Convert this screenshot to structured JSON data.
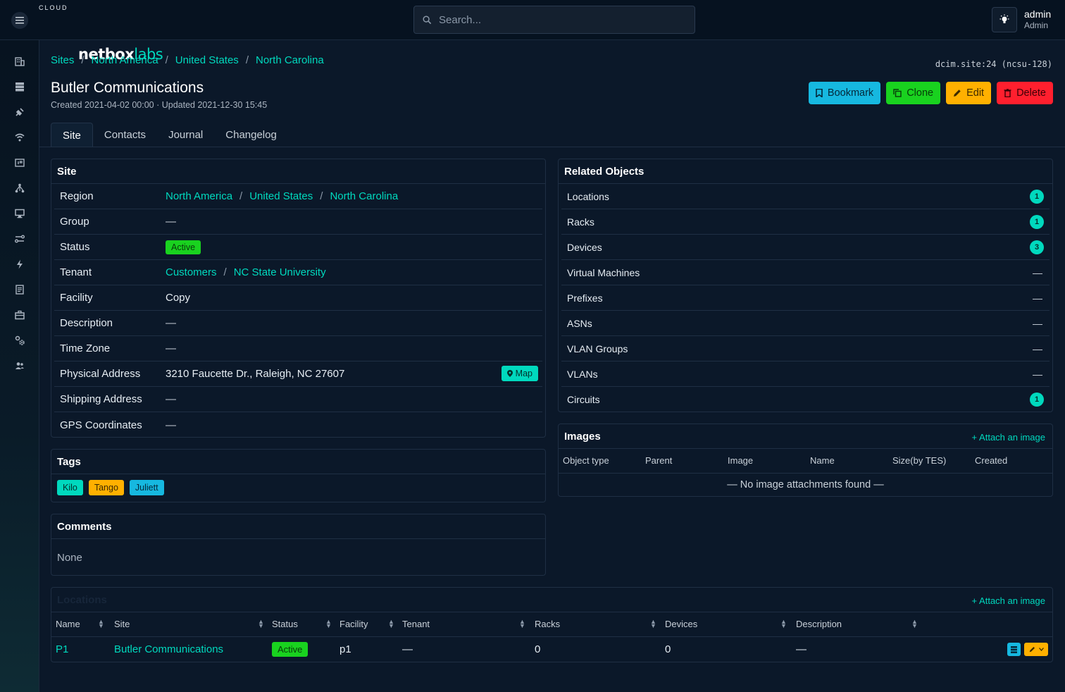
{
  "header": {
    "logo_main": "netbox",
    "logo_accent": "labs",
    "logo_sub": "CLOUD",
    "search_placeholder": "Search...",
    "user_name": "admin",
    "user_role": "Admin"
  },
  "sidebar": {
    "icons": [
      "building-icon",
      "server-icon",
      "plug-icon",
      "wifi-icon",
      "ip-icon",
      "network-icon",
      "monitor-icon",
      "circuit-icon",
      "power-icon",
      "document-icon",
      "briefcase-icon",
      "settings-icon",
      "users-icon"
    ]
  },
  "breadcrumb": [
    "Sites",
    "North America",
    "United States",
    "North Carolina"
  ],
  "object_id": "dcim.site:24 (ncsu-128)",
  "page": {
    "title": "Butler Communications",
    "meta": "Created 2021-04-02 00:00 · Updated 2021-12-30 15:45"
  },
  "actions": {
    "bookmark": "Bookmark",
    "clone": "Clone",
    "edit": "Edit",
    "delete": "Delete"
  },
  "tabs": [
    "Site",
    "Contacts",
    "Journal",
    "Changelog"
  ],
  "site_card": {
    "title": "Site",
    "region_label": "Region",
    "region": [
      "North America",
      "United States",
      "North Carolina"
    ],
    "group_label": "Group",
    "group": "—",
    "status_label": "Status",
    "status": "Active",
    "tenant_label": "Tenant",
    "tenant": [
      "Customers",
      "NC State University"
    ],
    "facility_label": "Facility",
    "facility": "Copy",
    "description_label": "Description",
    "description": "—",
    "timezone_label": "Time Zone",
    "timezone": "—",
    "physical_label": "Physical Address",
    "physical": "3210 Faucette Dr., Raleigh, NC 27607",
    "map_label": "Map",
    "shipping_label": "Shipping Address",
    "shipping": "—",
    "gps_label": "GPS Coordinates",
    "gps": "—"
  },
  "tags_card": {
    "title": "Tags",
    "tags": [
      {
        "label": "Kilo",
        "color": "#00d9be"
      },
      {
        "label": "Tango",
        "color": "#ffb000"
      },
      {
        "label": "Juliett",
        "color": "#16b8e0"
      }
    ]
  },
  "comments_card": {
    "title": "Comments",
    "text": "None"
  },
  "related": {
    "title": "Related Objects",
    "items": [
      {
        "label": "Locations",
        "count": "1"
      },
      {
        "label": "Racks",
        "count": "1"
      },
      {
        "label": "Devices",
        "count": "3"
      },
      {
        "label": "Virtual Machines",
        "count": "—"
      },
      {
        "label": "Prefixes",
        "count": "—"
      },
      {
        "label": "ASNs",
        "count": "—"
      },
      {
        "label": "VLAN Groups",
        "count": "—"
      },
      {
        "label": "VLANs",
        "count": "—"
      },
      {
        "label": "Circuits",
        "count": "1"
      }
    ]
  },
  "images": {
    "title": "Images",
    "attach": "Attach an image",
    "columns": [
      "Object type",
      "Parent",
      "Image",
      "Name",
      "Size(by TES)",
      "Created"
    ],
    "empty": "— No image attachments found —"
  },
  "locations": {
    "title": "Locations",
    "attach": "Attach an image",
    "columns": [
      "Name",
      "Site",
      "Status",
      "Facility",
      "Tenant",
      "Racks",
      "Devices",
      "Description"
    ],
    "rows": [
      {
        "name": "P1",
        "site": "Butler Communications",
        "status": "Active",
        "facility": "p1",
        "tenant": "—",
        "racks": "0",
        "devices": "0",
        "description": "—"
      }
    ]
  }
}
